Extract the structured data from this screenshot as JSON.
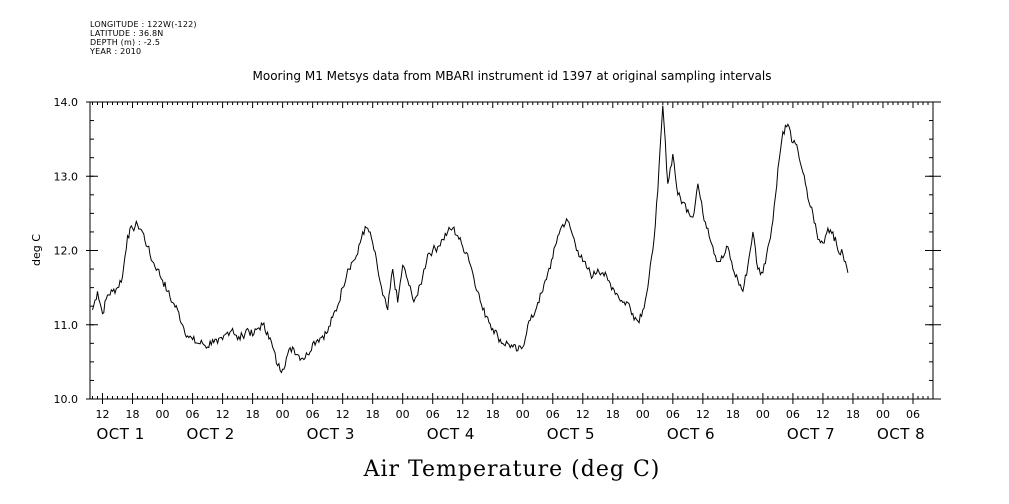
{
  "meta": {
    "longitude": "LONGITUDE : 122W(-122)",
    "latitude": "LATITUDE : 36.8N",
    "depth": "DEPTH (m) : -2.5",
    "year": "YEAR : 2010"
  },
  "chart_data": {
    "type": "line",
    "title": "Mooring M1 Metsys data from MBARI instrument id 1397 at original sampling intervals",
    "xlabel": "Air Temperature (deg C)",
    "ylabel": "deg C",
    "ylim": [
      10.0,
      14.0
    ],
    "yticks": [
      "10.0",
      "11.0",
      "12.0",
      "13.0",
      "14.0"
    ],
    "xlim_hours": [
      9.5,
      178
    ],
    "hour_ticks": [
      {
        "h": 12,
        "label": "12"
      },
      {
        "h": 18,
        "label": "18"
      },
      {
        "h": 24,
        "label": "00"
      },
      {
        "h": 30,
        "label": "06"
      },
      {
        "h": 36,
        "label": "12"
      },
      {
        "h": 42,
        "label": "18"
      },
      {
        "h": 48,
        "label": "00"
      },
      {
        "h": 54,
        "label": "06"
      },
      {
        "h": 60,
        "label": "12"
      },
      {
        "h": 66,
        "label": "18"
      },
      {
        "h": 72,
        "label": "00"
      },
      {
        "h": 78,
        "label": "06"
      },
      {
        "h": 84,
        "label": "12"
      },
      {
        "h": 90,
        "label": "18"
      },
      {
        "h": 96,
        "label": "00"
      },
      {
        "h": 102,
        "label": "06"
      },
      {
        "h": 108,
        "label": "12"
      },
      {
        "h": 114,
        "label": "18"
      },
      {
        "h": 120,
        "label": "00"
      },
      {
        "h": 126,
        "label": "06"
      },
      {
        "h": 132,
        "label": "12"
      },
      {
        "h": 138,
        "label": "18"
      },
      {
        "h": 144,
        "label": "00"
      },
      {
        "h": 150,
        "label": "06"
      },
      {
        "h": 156,
        "label": "12"
      },
      {
        "h": 162,
        "label": "18"
      },
      {
        "h": 168,
        "label": "00"
      },
      {
        "h": 174,
        "label": "06"
      }
    ],
    "day_labels": [
      {
        "h": 12,
        "label": "OCT  1"
      },
      {
        "h": 30,
        "label": "OCT  2"
      },
      {
        "h": 54,
        "label": "OCT  3"
      },
      {
        "h": 78,
        "label": "OCT  4"
      },
      {
        "h": 102,
        "label": "OCT  5"
      },
      {
        "h": 126,
        "label": "OCT  6"
      },
      {
        "h": 150,
        "label": "OCT  7"
      },
      {
        "h": 168,
        "label": "OCT  8"
      }
    ],
    "series": [
      {
        "points": [
          [
            10,
            11.2
          ],
          [
            11,
            11.45
          ],
          [
            12,
            11.15
          ],
          [
            13,
            11.4
          ],
          [
            14,
            11.45
          ],
          [
            15,
            11.5
          ],
          [
            16,
            11.65
          ],
          [
            17,
            12.2
          ],
          [
            18,
            12.3
          ],
          [
            19,
            12.35
          ],
          [
            20,
            12.25
          ],
          [
            21,
            12.05
          ],
          [
            22,
            11.85
          ],
          [
            23,
            11.75
          ],
          [
            24,
            11.6
          ],
          [
            25,
            11.45
          ],
          [
            26,
            11.3
          ],
          [
            27,
            11.2
          ],
          [
            28,
            11.0
          ],
          [
            29,
            10.85
          ],
          [
            30,
            10.8
          ],
          [
            31,
            10.75
          ],
          [
            32,
            10.75
          ],
          [
            33,
            10.7
          ],
          [
            34,
            10.8
          ],
          [
            35,
            10.75
          ],
          [
            36,
            10.8
          ],
          [
            37,
            10.9
          ],
          [
            38,
            10.95
          ],
          [
            39,
            10.8
          ],
          [
            40,
            10.85
          ],
          [
            41,
            10.95
          ],
          [
            42,
            10.85
          ],
          [
            43,
            10.95
          ],
          [
            44,
            11.0
          ],
          [
            45,
            10.9
          ],
          [
            46,
            10.7
          ],
          [
            47,
            10.45
          ],
          [
            48,
            10.4
          ],
          [
            49,
            10.6
          ],
          [
            50,
            10.7
          ],
          [
            51,
            10.6
          ],
          [
            52,
            10.55
          ],
          [
            53,
            10.6
          ],
          [
            54,
            10.75
          ],
          [
            55,
            10.8
          ],
          [
            56,
            10.85
          ],
          [
            57,
            10.9
          ],
          [
            58,
            11.1
          ],
          [
            59,
            11.25
          ],
          [
            60,
            11.5
          ],
          [
            61,
            11.75
          ],
          [
            62,
            11.85
          ],
          [
            63,
            11.95
          ],
          [
            64,
            12.25
          ],
          [
            65,
            12.3
          ],
          [
            66,
            12.1
          ],
          [
            67,
            11.75
          ],
          [
            68,
            11.4
          ],
          [
            69,
            11.2
          ],
          [
            70,
            11.75
          ],
          [
            71,
            11.3
          ],
          [
            72,
            11.8
          ],
          [
            73,
            11.6
          ],
          [
            74,
            11.35
          ],
          [
            75,
            11.4
          ],
          [
            76,
            11.65
          ],
          [
            77,
            11.95
          ],
          [
            78,
            12.0
          ],
          [
            79,
            12.05
          ],
          [
            80,
            12.15
          ],
          [
            81,
            12.25
          ],
          [
            82,
            12.3
          ],
          [
            83,
            12.2
          ],
          [
            84,
            12.05
          ],
          [
            85,
            11.95
          ],
          [
            86,
            11.7
          ],
          [
            87,
            11.45
          ],
          [
            88,
            11.2
          ],
          [
            89,
            11.1
          ],
          [
            90,
            10.95
          ],
          [
            91,
            10.85
          ],
          [
            92,
            10.75
          ],
          [
            93,
            10.75
          ],
          [
            94,
            10.7
          ],
          [
            95,
            10.65
          ],
          [
            96,
            10.7
          ],
          [
            97,
            11.0
          ],
          [
            98,
            11.1
          ],
          [
            99,
            11.3
          ],
          [
            100,
            11.45
          ],
          [
            101,
            11.7
          ],
          [
            102,
            11.9
          ],
          [
            103,
            12.2
          ],
          [
            104,
            12.35
          ],
          [
            105,
            12.4
          ],
          [
            106,
            12.2
          ],
          [
            107,
            12.0
          ],
          [
            108,
            11.85
          ],
          [
            109,
            11.75
          ],
          [
            110,
            11.65
          ],
          [
            111,
            11.75
          ],
          [
            112,
            11.7
          ],
          [
            113,
            11.6
          ],
          [
            114,
            11.5
          ],
          [
            115,
            11.4
          ],
          [
            116,
            11.3
          ],
          [
            117,
            11.3
          ],
          [
            118,
            11.15
          ],
          [
            119,
            11.05
          ],
          [
            120,
            11.2
          ],
          [
            121,
            11.5
          ],
          [
            122,
            12.0
          ],
          [
            123,
            12.8
          ],
          [
            124,
            13.95
          ],
          [
            125,
            12.9
          ],
          [
            126,
            13.3
          ],
          [
            127,
            12.75
          ],
          [
            128,
            12.65
          ],
          [
            129,
            12.55
          ],
          [
            130,
            12.45
          ],
          [
            131,
            12.9
          ],
          [
            132,
            12.5
          ],
          [
            133,
            12.3
          ],
          [
            134,
            12.05
          ],
          [
            135,
            11.85
          ],
          [
            136,
            11.9
          ],
          [
            137,
            12.05
          ],
          [
            138,
            11.75
          ],
          [
            139,
            11.6
          ],
          [
            140,
            11.45
          ],
          [
            141,
            11.8
          ],
          [
            142,
            12.25
          ],
          [
            143,
            11.75
          ],
          [
            144,
            11.7
          ],
          [
            145,
            12.05
          ],
          [
            146,
            12.4
          ],
          [
            147,
            13.1
          ],
          [
            148,
            13.6
          ],
          [
            149,
            13.7
          ],
          [
            150,
            13.45
          ],
          [
            151,
            13.35
          ],
          [
            152,
            13.05
          ],
          [
            153,
            12.7
          ],
          [
            154,
            12.5
          ],
          [
            155,
            12.15
          ],
          [
            156,
            12.1
          ],
          [
            157,
            12.3
          ],
          [
            158,
            12.25
          ],
          [
            159,
            12.0
          ],
          [
            160,
            11.95
          ],
          [
            161,
            11.7
          ]
        ]
      }
    ]
  }
}
